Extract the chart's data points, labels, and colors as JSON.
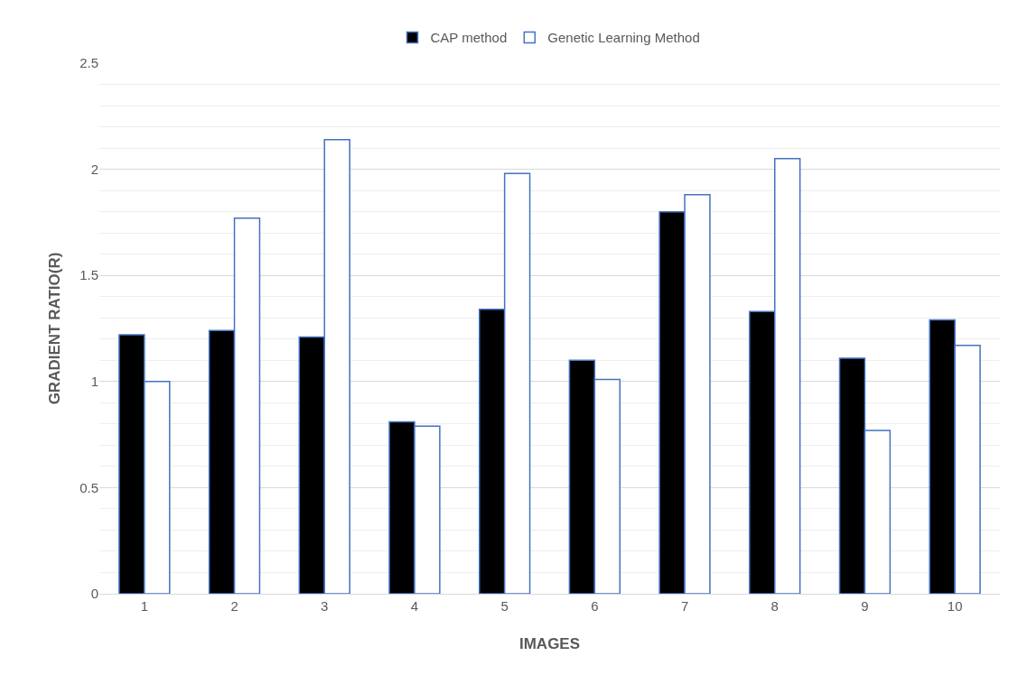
{
  "chart_data": {
    "type": "bar",
    "xlabel": "IMAGES",
    "ylabel": "GRADIENT RATIO(R)",
    "categories": [
      "1",
      "2",
      "3",
      "4",
      "5",
      "6",
      "7",
      "8",
      "9",
      "10"
    ],
    "series": [
      {
        "name": "CAP method",
        "color": "#000000",
        "values": [
          1.22,
          1.24,
          1.21,
          0.81,
          1.34,
          1.1,
          1.8,
          1.33,
          1.11,
          1.29
        ]
      },
      {
        "name": "Genetic Learning Method",
        "color": "#ffffff",
        "values": [
          1.0,
          1.77,
          2.14,
          0.79,
          1.98,
          1.01,
          1.88,
          2.05,
          0.77,
          1.17
        ]
      }
    ],
    "ylim": [
      0,
      2.5
    ],
    "yticks": [
      0,
      0.5,
      1,
      1.5,
      2,
      2.5
    ],
    "grid": "y",
    "legend": "top"
  }
}
